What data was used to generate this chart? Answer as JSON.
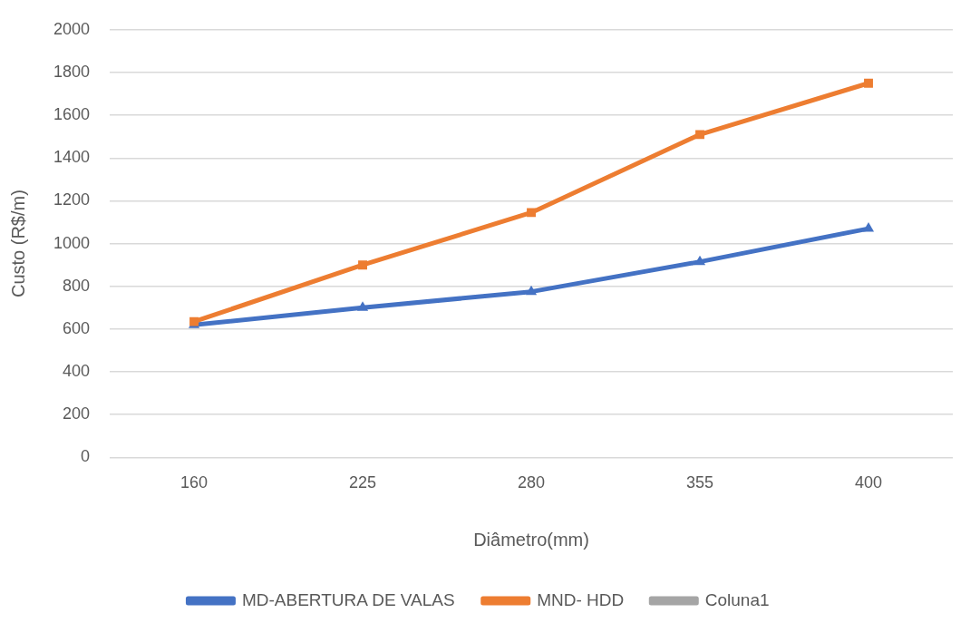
{
  "chart_data": {
    "type": "line",
    "xlabel": "Diâmetro(mm)",
    "ylabel": "Custo (R$/m)",
    "categories": [
      "160",
      "225",
      "280",
      "355",
      "400"
    ],
    "series": [
      {
        "name": "MD-ABERTURA DE VALAS",
        "color": "#4472c4",
        "marker": "triangle",
        "values": [
          620,
          700,
          775,
          915,
          1070
        ]
      },
      {
        "name": "MND- HDD",
        "color": "#ed7d31",
        "marker": "square",
        "values": [
          635,
          900,
          1145,
          1510,
          1750
        ]
      },
      {
        "name": "Coluna1",
        "color": "#a5a5a5",
        "marker": "circle",
        "values": [
          null,
          null,
          null,
          null,
          null
        ]
      }
    ],
    "ylim": [
      0,
      2000
    ],
    "yticks": [
      0,
      200,
      400,
      600,
      800,
      1000,
      1200,
      1400,
      1600,
      1800,
      2000
    ],
    "grid": "y",
    "legend": "bottom",
    "line_style": "solid"
  }
}
